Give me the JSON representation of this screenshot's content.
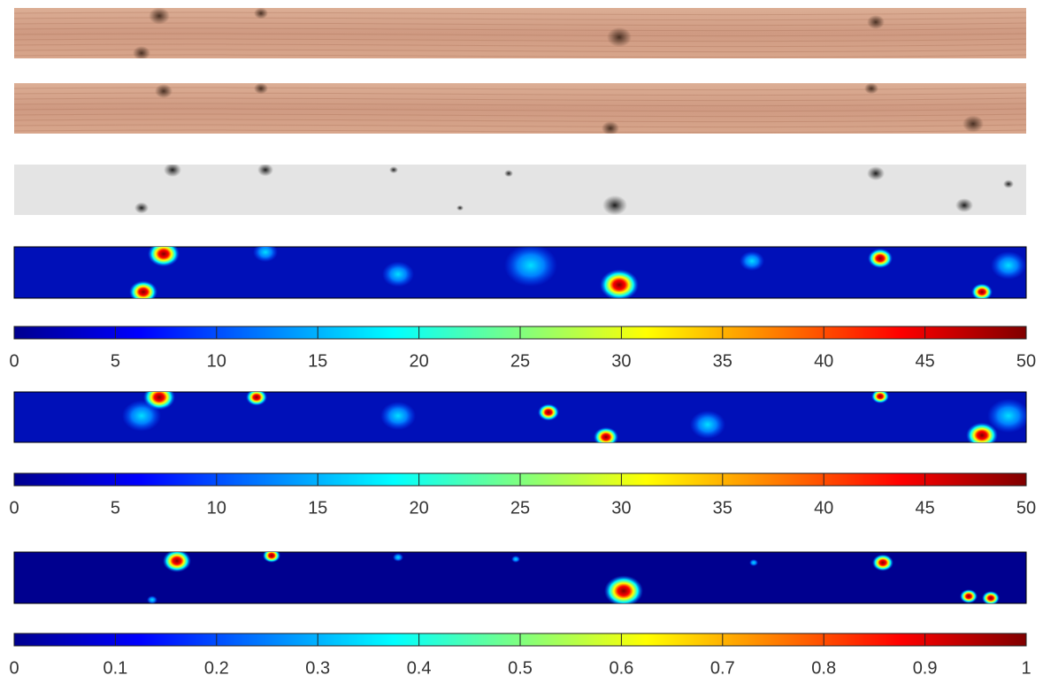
{
  "colorbars": [
    {
      "lim": [
        0,
        50
      ],
      "ticks": [
        0,
        5,
        10,
        15,
        20,
        25,
        30,
        35,
        40,
        45,
        50
      ]
    },
    {
      "lim": [
        0,
        50
      ],
      "ticks": [
        0,
        5,
        10,
        15,
        20,
        25,
        30,
        35,
        40,
        45,
        50
      ]
    },
    {
      "lim": [
        0,
        1
      ],
      "ticks": [
        0,
        0.1,
        0.2,
        0.3,
        0.4,
        0.5,
        0.6,
        0.7,
        0.8,
        0.9,
        1
      ]
    }
  ]
}
